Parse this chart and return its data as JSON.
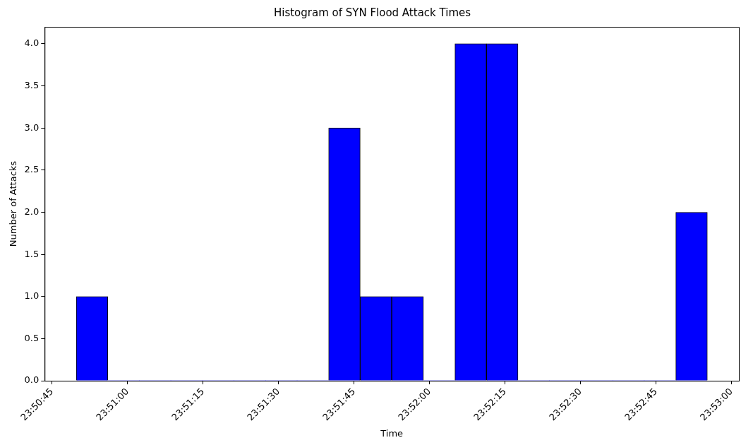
{
  "chart_data": {
    "type": "histogram",
    "title": "Histogram of SYN Flood Attack Times",
    "xlabel": "Time",
    "ylabel": "Number of Attacks",
    "bins": [
      23.84717,
      23.84891,
      23.85065,
      23.85239,
      23.85413,
      23.85588,
      23.85762,
      23.85936,
      23.8611,
      23.86284,
      23.86458,
      23.86633,
      23.86807,
      23.86981,
      23.87155,
      23.87329,
      23.87503,
      23.87678,
      23.87852,
      23.88026,
      23.882
    ],
    "values": [
      1,
      0,
      0,
      0,
      0,
      0,
      0,
      0,
      3,
      1,
      1,
      0,
      4,
      4,
      0,
      0,
      0,
      0,
      0,
      2
    ],
    "color": "#0000ff",
    "xlim": [
      23.845425,
      23.883742
    ],
    "xticks": [
      {
        "value": 23.845833,
        "label": "23:50:45"
      },
      {
        "value": 23.85,
        "label": "23:51:00"
      },
      {
        "value": 23.854167,
        "label": "23:51:15"
      },
      {
        "value": 23.858333,
        "label": "23:51:30"
      },
      {
        "value": 23.8625,
        "label": "23:51:45"
      },
      {
        "value": 23.866667,
        "label": "23:52:00"
      },
      {
        "value": 23.870833,
        "label": "23:52:15"
      },
      {
        "value": 23.875,
        "label": "23:52:30"
      },
      {
        "value": 23.879167,
        "label": "23:52:45"
      },
      {
        "value": 23.883333,
        "label": "23:53:00"
      }
    ],
    "ylim": [
      0,
      4.2
    ],
    "yticks": [
      {
        "value": 0,
        "label": "0.0"
      },
      {
        "value": 0.5,
        "label": "0.5"
      },
      {
        "value": 1,
        "label": "1.0"
      },
      {
        "value": 1.5,
        "label": "1.5"
      },
      {
        "value": 2,
        "label": "2.0"
      },
      {
        "value": 2.5,
        "label": "2.5"
      },
      {
        "value": 3,
        "label": "3.0"
      },
      {
        "value": 3.5,
        "label": "3.5"
      },
      {
        "value": 4,
        "label": "4.0"
      }
    ],
    "grid": false
  }
}
